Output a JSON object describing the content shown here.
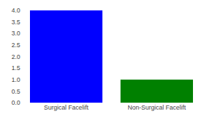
{
  "chart_data": {
    "type": "bar",
    "categories": [
      "Surgical Facelift",
      "Non-Surgical Facelift"
    ],
    "values": [
      4.0,
      1.0
    ],
    "colors": [
      "#0000ff",
      "#008000"
    ],
    "ylim": [
      0,
      4.0
    ],
    "yticks": [
      {
        "value": 0,
        "label": "0.0"
      },
      0.5,
      {
        "value": 1.0,
        "label": "1.0"
      },
      1.5,
      {
        "value": 2.0,
        "label": "2.0"
      },
      2.5,
      {
        "value": 3.0,
        "label": "3.0"
      },
      3.5,
      {
        "value": 4.0,
        "label": "4.0"
      }
    ],
    "grid": false
  }
}
